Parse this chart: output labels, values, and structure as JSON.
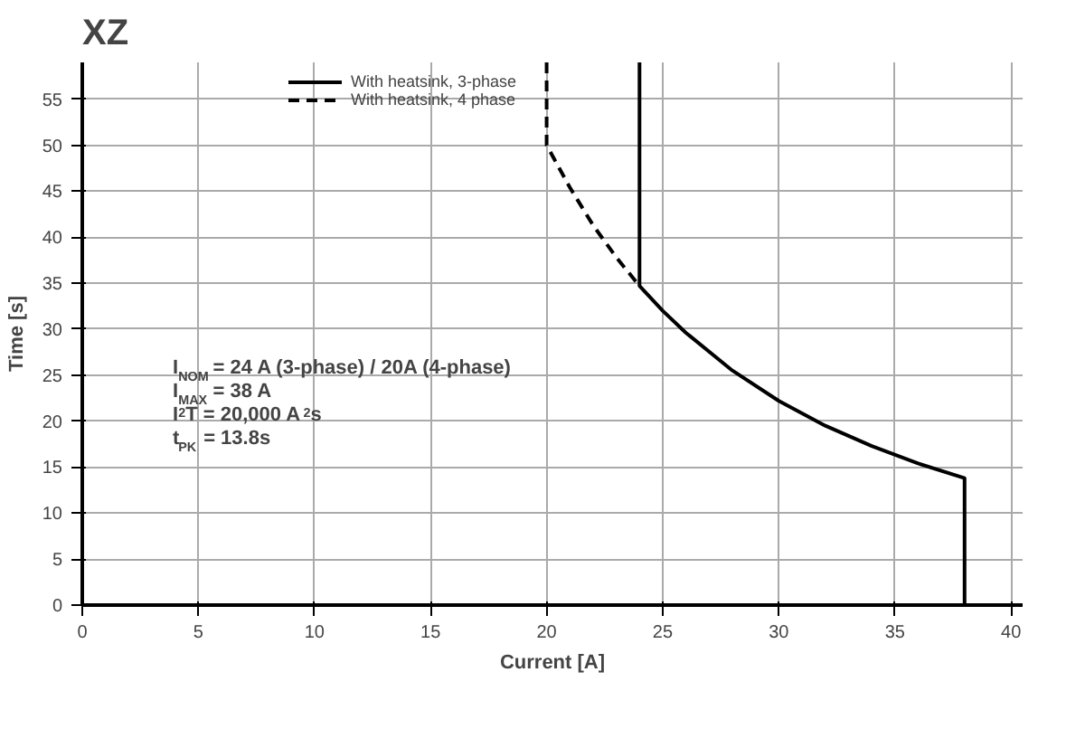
{
  "chart_data": {
    "type": "line",
    "title": "XZ",
    "xlabel": "Current [A]",
    "ylabel": "Time [s]",
    "series": [
      {
        "name": "With heatsink, 3-phase",
        "color": "#000000",
        "line_style": "solid",
        "x": [
          24,
          24,
          25,
          26,
          28,
          30,
          32,
          34,
          36,
          38,
          38
        ],
        "values": [
          59,
          34.7,
          32,
          29.6,
          25.5,
          22.2,
          19.5,
          17.3,
          15.4,
          13.8,
          0
        ]
      },
      {
        "name": "With heatsink, 4 phase",
        "color": "#000000",
        "line_style": "dashed",
        "x": [
          20,
          20,
          21,
          22,
          23,
          24
        ],
        "values": [
          59,
          50,
          45.4,
          41.3,
          37.8,
          34.7
        ]
      }
    ],
    "xlim": [
      0,
      40.5
    ],
    "ylim": [
      0,
      59
    ],
    "xticks": [
      0,
      5,
      10,
      15,
      20,
      25,
      30,
      35,
      40
    ],
    "yticks": [
      0,
      5,
      10,
      15,
      20,
      25,
      30,
      35,
      40,
      45,
      50,
      55
    ],
    "grid": true,
    "legend": "top",
    "marker": "none",
    "annotations": [
      "I$_{NOM}$ = 24 A (3-phase) / 20A (4-phase)",
      "I$_{MAX}$ = 38 A",
      "I$^{2}$T = 20,000 A$^{2}$s",
      "t$_{PK}$ = 13.8s"
    ]
  }
}
